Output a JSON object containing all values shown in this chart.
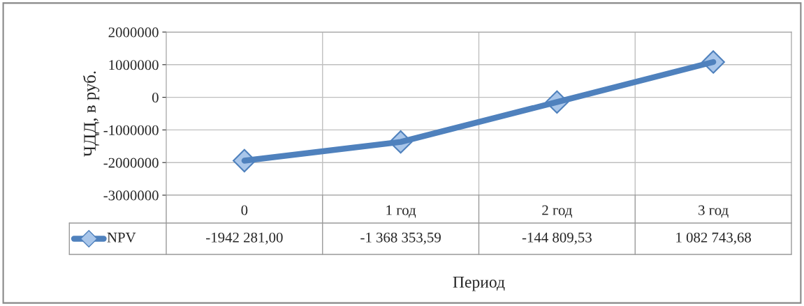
{
  "chart_data": {
    "type": "line",
    "xlabel": "Период",
    "ylabel": "ЧДД, в руб.",
    "categories": [
      "0",
      "1 год",
      "2 год",
      "3 год"
    ],
    "series": [
      {
        "name": "NPV",
        "color": "#4f81bd",
        "values": [
          -1942281.0,
          -1368353.59,
          -144809.53,
          1082743.68
        ],
        "value_labels": [
          "-1942 281,00",
          "-1 368 353,59",
          "-144 809,53",
          "1 082 743,68"
        ]
      }
    ],
    "ylim": [
      -3000000,
      2000000
    ],
    "yticks": [
      -3000000,
      -2000000,
      -1000000,
      0,
      1000000,
      2000000
    ],
    "grid": true,
    "legend": "bottom",
    "marker": "diamond",
    "line_style": "solid"
  }
}
